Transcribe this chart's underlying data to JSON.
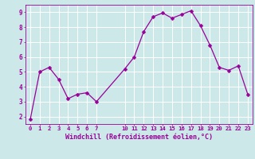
{
  "x": [
    0,
    1,
    2,
    3,
    4,
    5,
    6,
    7,
    10,
    11,
    12,
    13,
    14,
    15,
    16,
    17,
    18,
    19,
    20,
    21,
    22,
    23
  ],
  "y": [
    1.8,
    5.0,
    5.3,
    4.5,
    3.2,
    3.5,
    3.6,
    3.0,
    5.2,
    6.0,
    7.7,
    8.7,
    8.95,
    8.6,
    8.85,
    9.1,
    8.1,
    6.8,
    5.3,
    5.1,
    5.4,
    3.5
  ],
  "line_color": "#990099",
  "marker": "D",
  "marker_size": 2.5,
  "bg_color": "#cce8e8",
  "grid_color": "#ffffff",
  "xlabel": "Windchill (Refroidissement éolien,°C)",
  "xlabel_color": "#990099",
  "tick_color": "#990099",
  "label_color": "#990099",
  "ylim": [
    1.5,
    9.5
  ],
  "xlim": [
    -0.5,
    23.5
  ],
  "yticks": [
    2,
    3,
    4,
    5,
    6,
    7,
    8,
    9
  ],
  "xticks": [
    0,
    1,
    2,
    3,
    4,
    5,
    6,
    7,
    10,
    11,
    12,
    13,
    14,
    15,
    16,
    17,
    18,
    19,
    20,
    21,
    22,
    23
  ],
  "spine_color": "#990099",
  "xlabel_fontsize": 6.0,
  "tick_fontsize": 5.2,
  "ytick_fontsize": 5.5
}
